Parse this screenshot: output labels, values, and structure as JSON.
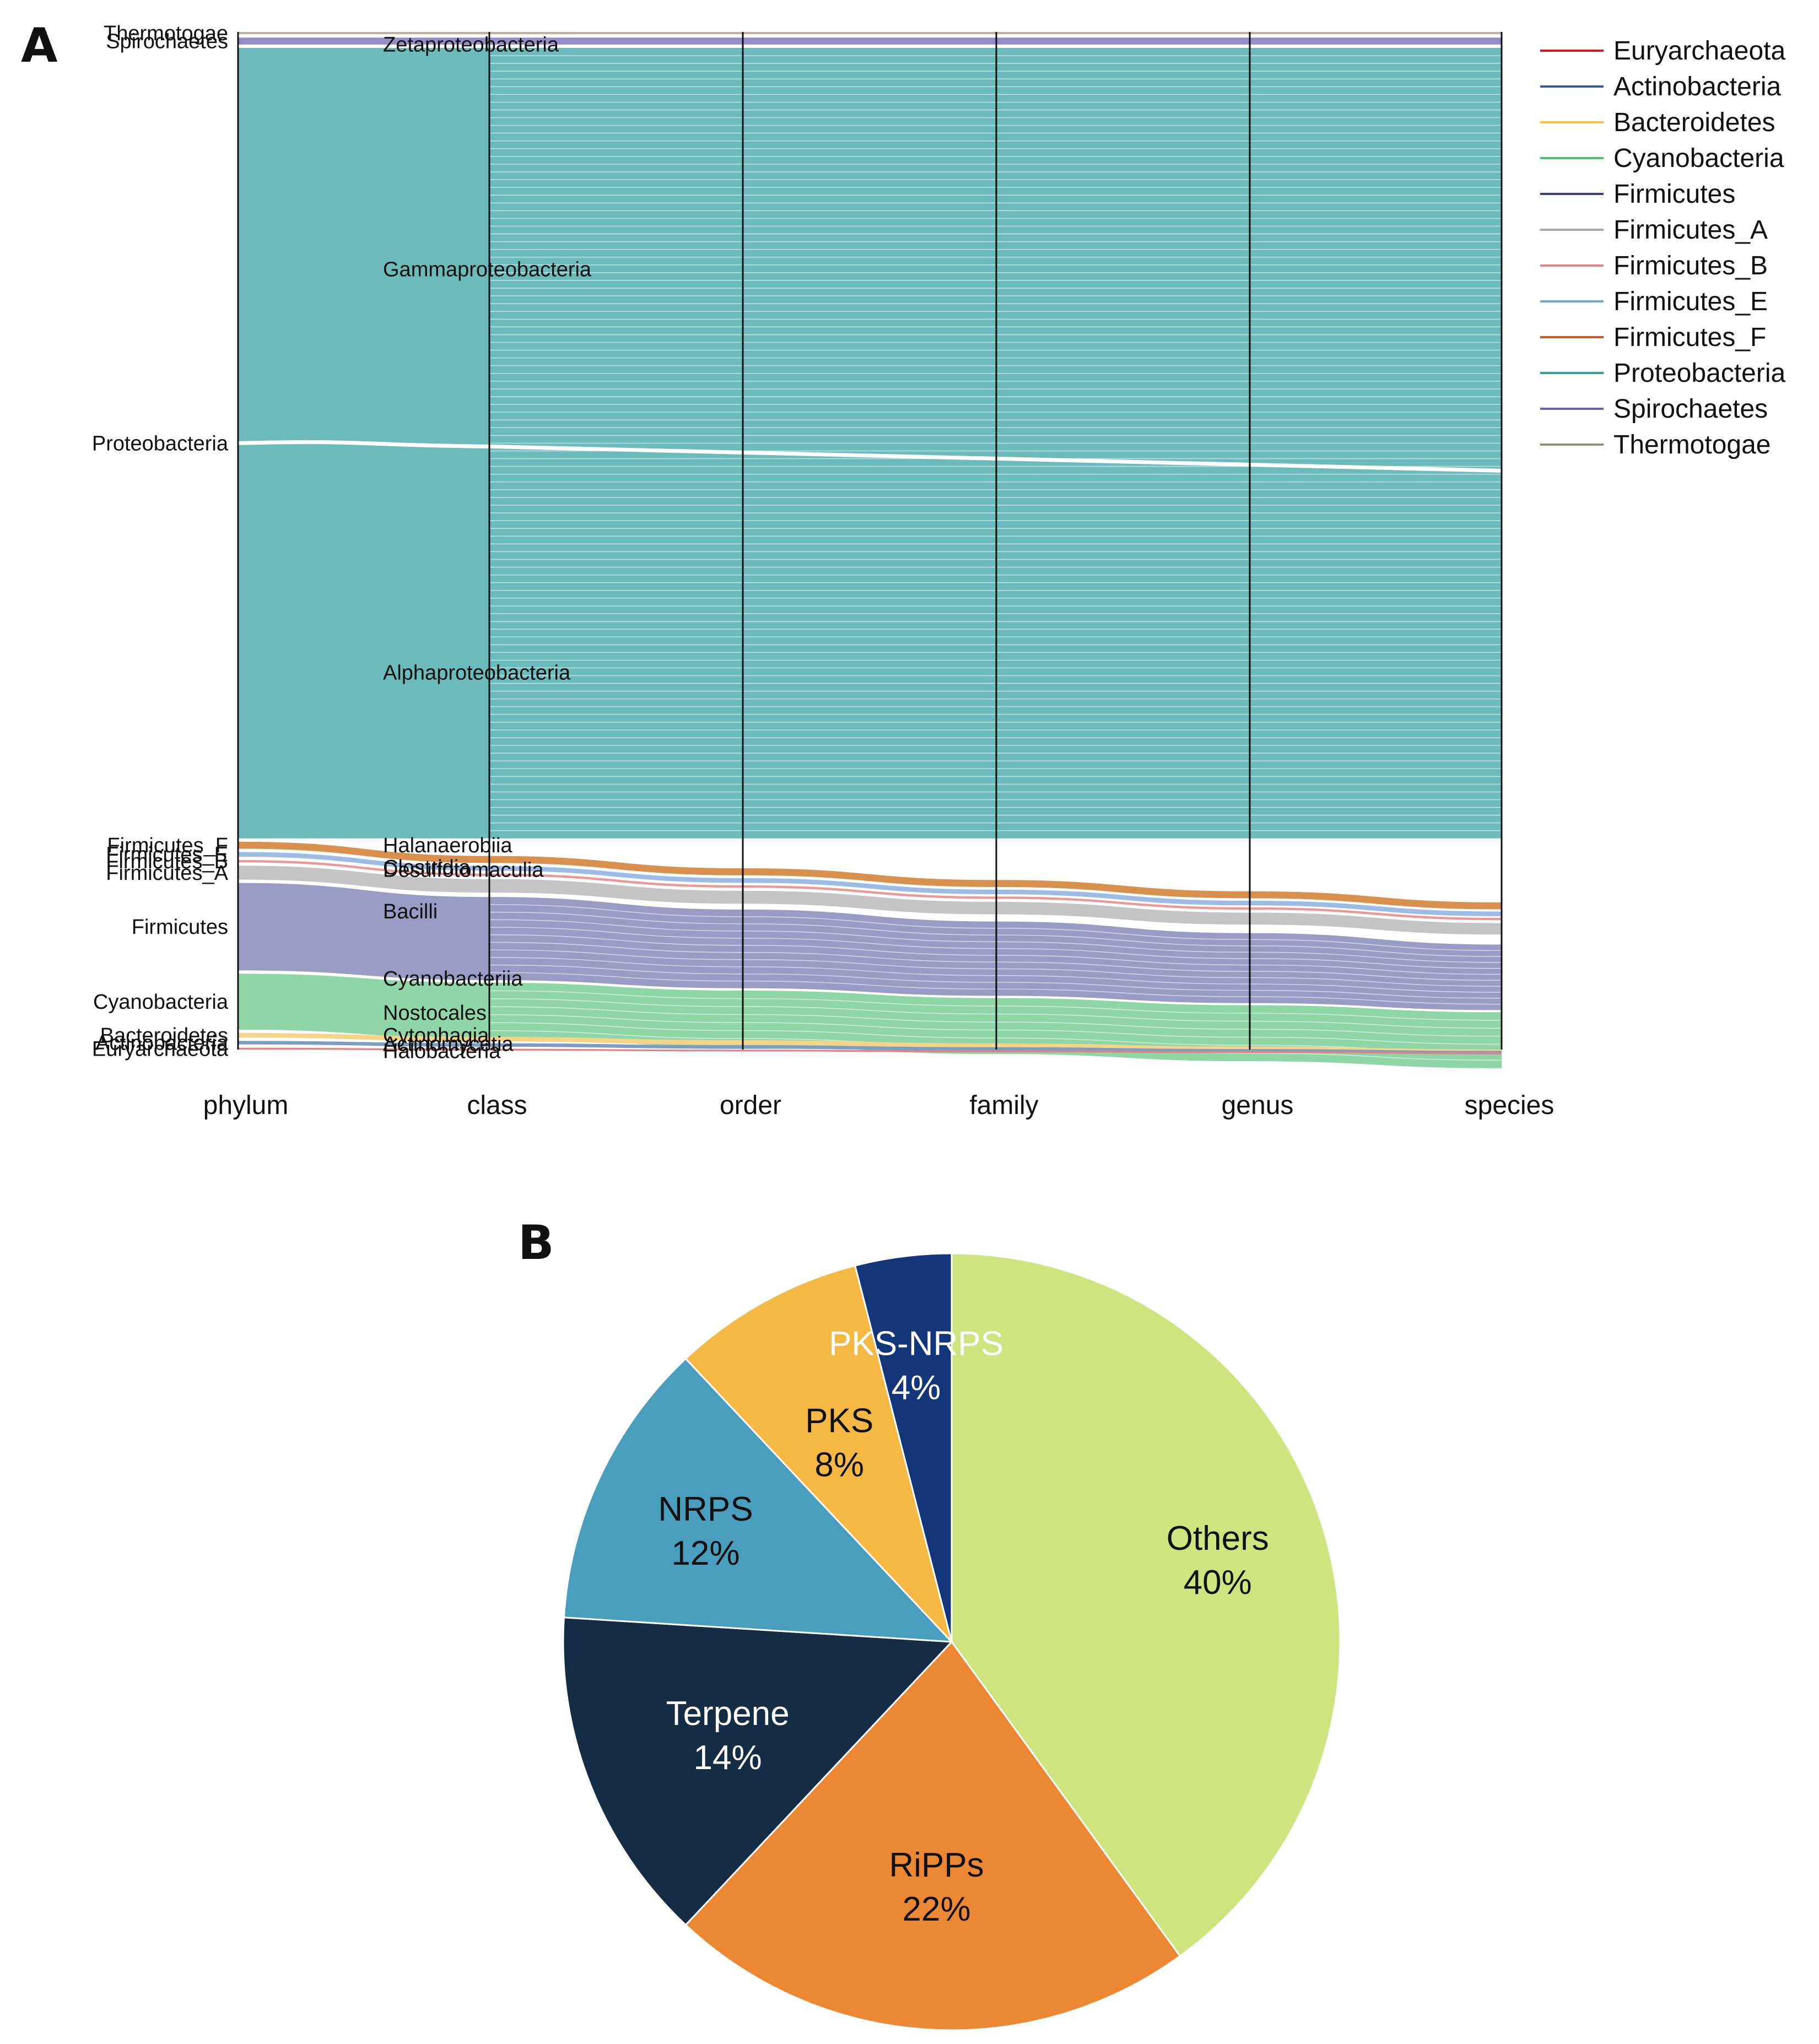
{
  "panels": {
    "a": {
      "letter": "A"
    },
    "b": {
      "letter": "B"
    }
  },
  "chart_data": [
    {
      "type": "alluvial",
      "axes": [
        "phylum",
        "class",
        "order",
        "family",
        "genus",
        "species"
      ],
      "legend_position": "right",
      "legend": [
        {
          "name": "Euryarchaeota",
          "color": "#d7191c"
        },
        {
          "name": "Actinobacteria",
          "color": "#2c5f9e"
        },
        {
          "name": "Bacteroidetes",
          "color": "#f5c341"
        },
        {
          "name": "Cyanobacteria",
          "color": "#4cbf73"
        },
        {
          "name": "Firmicutes",
          "color": "#3b3f8c"
        },
        {
          "name": "Firmicutes_A",
          "color": "#a8a8a8"
        },
        {
          "name": "Firmicutes_B",
          "color": "#e8828c"
        },
        {
          "name": "Firmicutes_E",
          "color": "#6aa6dc"
        },
        {
          "name": "Firmicutes_F",
          "color": "#c05a2a"
        },
        {
          "name": "Proteobacteria",
          "color": "#2f9e9a"
        },
        {
          "name": "Spirochaetes",
          "color": "#6a5fb0"
        },
        {
          "name": "Thermotogae",
          "color": "#9c8a78"
        }
      ],
      "phyla": [
        {
          "name": "Thermotogae",
          "share": 0.2,
          "color": "#b5a89a",
          "opacity": 0.9
        },
        {
          "name": "Spirochaetes",
          "share": 0.6,
          "color": "#8f87c3",
          "opacity": 0.95
        },
        {
          "name": "Proteobacteria",
          "share": 67.8,
          "color": "#6bbabc",
          "opacity": 1
        },
        {
          "name": "Firmicutes_F",
          "share": 0.6,
          "color": "#d9904c",
          "opacity": 1
        },
        {
          "name": "Firmicutes_E",
          "share": 0.4,
          "color": "#9cbbe6",
          "opacity": 1
        },
        {
          "name": "Firmicutes_B",
          "share": 0.2,
          "color": "#ee9696",
          "opacity": 1
        },
        {
          "name": "Firmicutes_A",
          "share": 1.2,
          "color": "#c4c4c4",
          "opacity": 1
        },
        {
          "name": "Firmicutes",
          "share": 7.5,
          "color": "#9a9bc4",
          "opacity": 1
        },
        {
          "name": "Cyanobacteria",
          "share": 4.8,
          "color": "#8ed6a6",
          "opacity": 1
        },
        {
          "name": "Bacteroidetes",
          "share": 0.4,
          "color": "#f5d488",
          "opacity": 1
        },
        {
          "name": "Actinobacteria",
          "share": 0.3,
          "color": "#7d9cc4",
          "opacity": 1
        },
        {
          "name": "Euryarchaeota",
          "share": 0.15,
          "color": "#e88080",
          "opacity": 1
        }
      ],
      "classes": [
        "Zetaproteobacteria",
        "Gammaproteobacteria",
        "Alphaproteobacteria",
        "Halanaerobiia",
        "Desulfotomaculia",
        "Clostridia",
        "Bacilli",
        "Cyanobacteriia",
        "Nostocales",
        "Cytophagia",
        "Actinomycetia",
        "Halobacteria"
      ]
    },
    {
      "type": "pie",
      "slices": [
        {
          "label": "Others",
          "pct_label": "40%",
          "value": 40,
          "color": "#cfe37f",
          "text_color": "#111111"
        },
        {
          "label": "RiPPs",
          "pct_label": "22%",
          "value": 22,
          "color": "#ec8834",
          "text_color": "#111111"
        },
        {
          "label": "Terpene",
          "pct_label": "14%",
          "value": 14,
          "color": "#142d44",
          "text_color": "#ffffff"
        },
        {
          "label": "NRPS",
          "pct_label": "12%",
          "value": 12,
          "color": "#4a9ebd",
          "text_color": "#111111"
        },
        {
          "label": "PKS",
          "pct_label": "8%",
          "value": 8,
          "color": "#f4b843",
          "text_color": "#111111"
        },
        {
          "label": "PKS-NRPS",
          "pct_label": "4%",
          "value": 4,
          "color": "#13367a",
          "text_color": "#ffffff"
        }
      ]
    }
  ]
}
